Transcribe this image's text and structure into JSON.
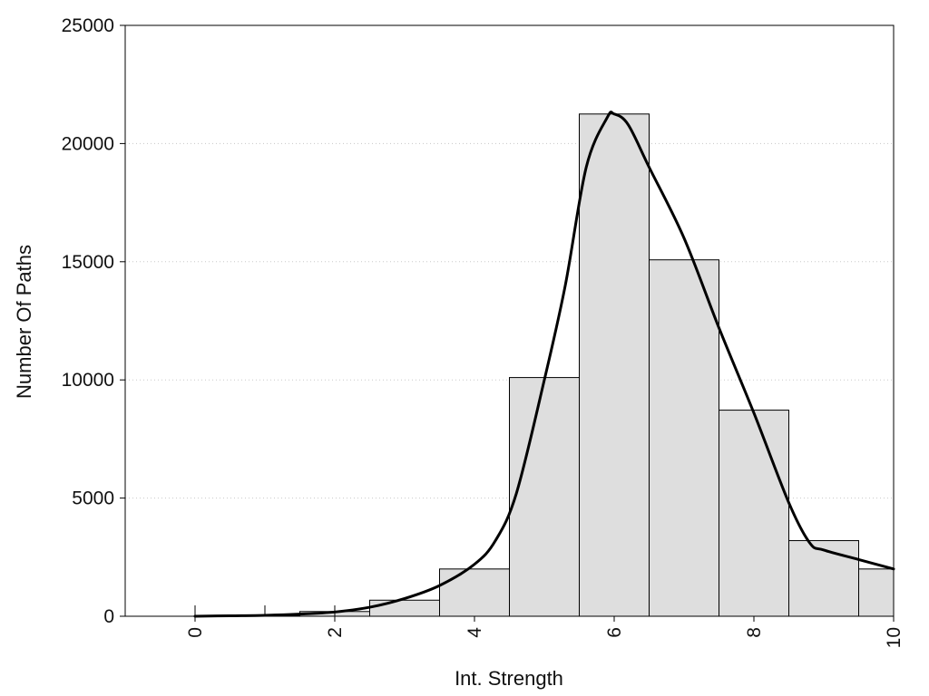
{
  "chart_data": {
    "type": "bar",
    "title": "",
    "xlabel": "Int. Strength",
    "ylabel": "Number Of Paths",
    "xlim": [
      -1,
      10
    ],
    "ylim": [
      0,
      25000
    ],
    "xticks": [
      0,
      2,
      4,
      6,
      8,
      10
    ],
    "xtick_labels": [
      "0",
      "2",
      "4",
      "6",
      "8",
      "10"
    ],
    "yticks": [
      0,
      5000,
      10000,
      15000,
      20000,
      25000
    ],
    "ytick_labels": [
      "0",
      "5000",
      "10000",
      "15000",
      "20000",
      "25000"
    ],
    "minor_xticks": [
      0,
      1,
      2
    ],
    "grid": "horizontal dotted",
    "bar_color": "#dedede",
    "bar_edge_color": "#000000",
    "line_color": "#000000",
    "bars": [
      {
        "x": 1,
        "value": 40
      },
      {
        "x": 2,
        "value": 200
      },
      {
        "x": 3,
        "value": 680
      },
      {
        "x": 4,
        "value": 2000
      },
      {
        "x": 5,
        "value": 10100
      },
      {
        "x": 6,
        "value": 21250
      },
      {
        "x": 7,
        "value": 15080
      },
      {
        "x": 8,
        "value": 8720
      },
      {
        "x": 9,
        "value": 3200
      },
      {
        "x": 10,
        "value": 2000
      }
    ],
    "bar_width": 1,
    "curve": {
      "x": [
        0,
        0.5,
        1,
        1.5,
        2,
        2.5,
        3,
        3.5,
        4,
        4.3,
        4.6,
        5,
        5.3,
        5.6,
        5.9,
        6.0,
        6.2,
        6.5,
        7,
        7.5,
        8,
        8.5,
        8.8,
        9,
        9.5,
        10
      ],
      "y": [
        0,
        20,
        40,
        90,
        180,
        380,
        750,
        1300,
        2200,
        3200,
        5200,
        10000,
        14000,
        19000,
        21100,
        21250,
        20800,
        19000,
        16000,
        12200,
        8600,
        4800,
        3100,
        2800,
        2400,
        2000
      ]
    }
  }
}
